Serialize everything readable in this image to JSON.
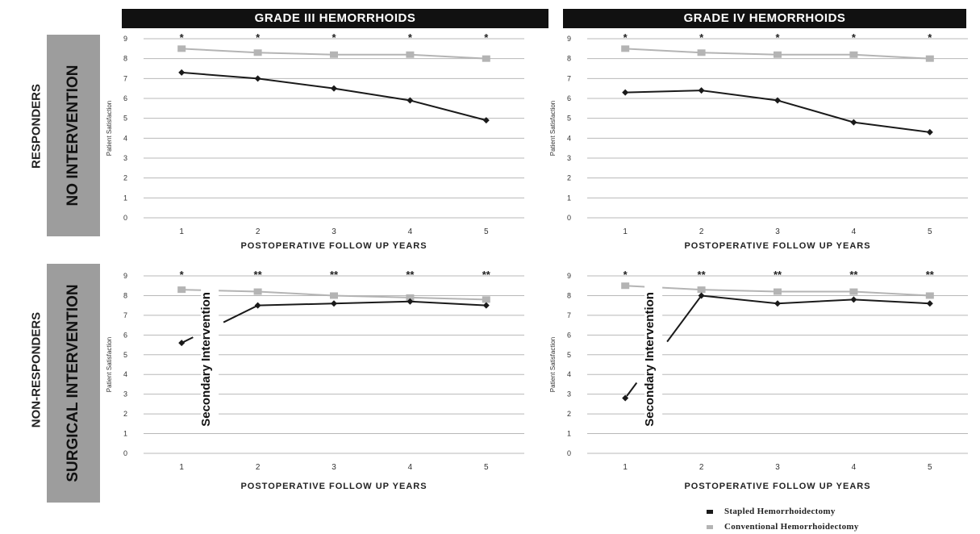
{
  "columns": [
    "GRADE III HEMORRHOIDS",
    "GRADE IV HEMORRHOIDS"
  ],
  "rows": [
    {
      "group": "RESPONDERS",
      "label": "NO INTERVENTION"
    },
    {
      "group": "NON-RESPONDERS",
      "label": "SURGICAL INTERVENTION"
    }
  ],
  "legend": {
    "stapled": "Stapled Hemorrhoidectomy",
    "conventional": "Conventional Hemorrhoidectomy"
  },
  "colors": {
    "stapled": "#1a1a1a",
    "conventional": "#b4b4b4",
    "header_bg": "#111111",
    "row_box": "#9d9d9d"
  },
  "chart_data": [
    {
      "type": "line",
      "title": "GRADE III HEMORRHOIDS",
      "xlabel": "POSTOPERATIVE FOLLOW UP YEARS",
      "ylabel": "Patient Satisfaction",
      "x": [
        1,
        2,
        3,
        4,
        5
      ],
      "ylim": [
        0,
        9
      ],
      "series": [
        {
          "name": "Stapled Hemorrhoidectomy",
          "values": [
            7.3,
            7.0,
            6.5,
            5.9,
            4.9
          ]
        },
        {
          "name": "Conventional Hemorrhoidectomy",
          "values": [
            8.5,
            8.3,
            8.2,
            8.2,
            8.0
          ]
        }
      ],
      "annotations": [
        "*",
        "*",
        "*",
        "*",
        "*"
      ],
      "secondary": ""
    },
    {
      "type": "line",
      "title": "GRADE IV HEMORRHOIDS",
      "xlabel": "POSTOPERATIVE FOLLOW UP YEARS",
      "ylabel": "Patient Satisfaction",
      "x": [
        1,
        2,
        3,
        4,
        5
      ],
      "ylim": [
        0,
        9
      ],
      "series": [
        {
          "name": "Stapled Hemorrhoidectomy",
          "values": [
            6.3,
            6.4,
            5.9,
            4.8,
            4.3
          ]
        },
        {
          "name": "Conventional Hemorrhoidectomy",
          "values": [
            8.5,
            8.3,
            8.2,
            8.2,
            8.0
          ]
        }
      ],
      "annotations": [
        "*",
        "*",
        "*",
        "*",
        "*"
      ],
      "secondary": ""
    },
    {
      "type": "line",
      "title": "GRADE III HEMORRHOIDS",
      "xlabel": "POSTOPERATIVE FOLLOW UP YEARS",
      "ylabel": "Patient Satisfaction",
      "x": [
        1,
        2,
        3,
        4,
        5
      ],
      "ylim": [
        0,
        9
      ],
      "series": [
        {
          "name": "Stapled Hemorrhoidectomy",
          "values": [
            5.6,
            7.5,
            7.6,
            7.7,
            7.5
          ]
        },
        {
          "name": "Conventional Hemorrhoidectomy",
          "values": [
            8.3,
            8.2,
            8.0,
            7.9,
            7.8
          ]
        }
      ],
      "annotations": [
        "*",
        "**",
        "**",
        "**",
        "**"
      ],
      "secondary": "Secondary Intervention"
    },
    {
      "type": "line",
      "title": "GRADE IV HEMORRHOIDS",
      "xlabel": "POSTOPERATIVE FOLLOW UP YEARS",
      "ylabel": "Patient Satisfaction",
      "x": [
        1,
        2,
        3,
        4,
        5
      ],
      "ylim": [
        0,
        9
      ],
      "series": [
        {
          "name": "Stapled Hemorrhoidectomy",
          "values": [
            2.8,
            8.0,
            7.6,
            7.8,
            7.6
          ]
        },
        {
          "name": "Conventional Hemorrhoidectomy",
          "values": [
            8.5,
            8.3,
            8.2,
            8.2,
            8.0
          ]
        }
      ],
      "annotations": [
        "*",
        "**",
        "**",
        "**",
        "**"
      ],
      "secondary": "Secondary Intervention"
    }
  ]
}
